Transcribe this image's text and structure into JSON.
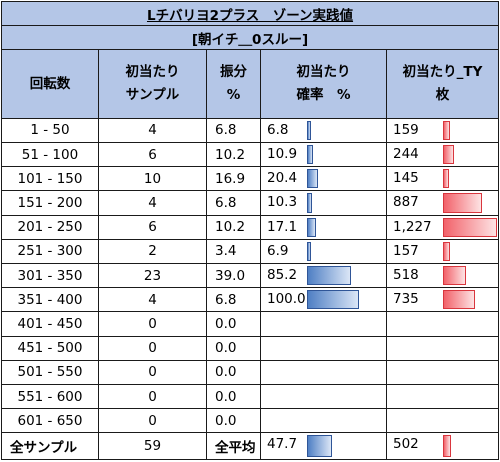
{
  "title": "Lチバリヨ2プラス　ゾーン実践値",
  "subtitle": "[朝イチ＿0スルー]",
  "headers": {
    "range": "回転数",
    "samples_l1": "初当たり",
    "samples_l2": "サンプル",
    "share_l1": "振分",
    "share_l2": "%",
    "rate_l1": "初当たり",
    "rate_l2": "確率　%",
    "ty_l1": "初当たり_TY",
    "ty_l2": "枚"
  },
  "rows": [
    {
      "range": "1 - 50",
      "samples": "4",
      "share": "6.8",
      "rate": "6.8",
      "ty": "159"
    },
    {
      "range": "51 - 100",
      "samples": "6",
      "share": "10.2",
      "rate": "10.9",
      "ty": "244"
    },
    {
      "range": "101 - 150",
      "samples": "10",
      "share": "16.9",
      "rate": "20.4",
      "ty": "145"
    },
    {
      "range": "151 - 200",
      "samples": "4",
      "share": "6.8",
      "rate": "10.3",
      "ty": "887"
    },
    {
      "range": "201 - 250",
      "samples": "6",
      "share": "10.2",
      "rate": "17.1",
      "ty": "1,227"
    },
    {
      "range": "251 - 300",
      "samples": "2",
      "share": "3.4",
      "rate": "6.9",
      "ty": "157"
    },
    {
      "range": "301 - 350",
      "samples": "23",
      "share": "39.0",
      "rate": "85.2",
      "ty": "518"
    },
    {
      "range": "351 - 400",
      "samples": "4",
      "share": "6.8",
      "rate": "100.0",
      "ty": "735"
    },
    {
      "range": "401 - 450",
      "samples": "0",
      "share": "0.0",
      "rate": "",
      "ty": ""
    },
    {
      "range": "451 - 500",
      "samples": "0",
      "share": "0.0",
      "rate": "",
      "ty": ""
    },
    {
      "range": "501 - 550",
      "samples": "0",
      "share": "0.0",
      "rate": "",
      "ty": ""
    },
    {
      "range": "551 - 600",
      "samples": "0",
      "share": "0.0",
      "rate": "",
      "ty": ""
    },
    {
      "range": "601 - 650",
      "samples": "0",
      "share": "0.0",
      "rate": "",
      "ty": ""
    }
  ],
  "total": {
    "label": "全サンプル",
    "samples": "59",
    "avg_label": "全平均",
    "rate": "47.7",
    "ty": "502"
  },
  "data_bars": {
    "rate_max": 100,
    "ty_max": 1227,
    "rate_color": "#4f7fc4",
    "ty_color": "#f2626a"
  }
}
